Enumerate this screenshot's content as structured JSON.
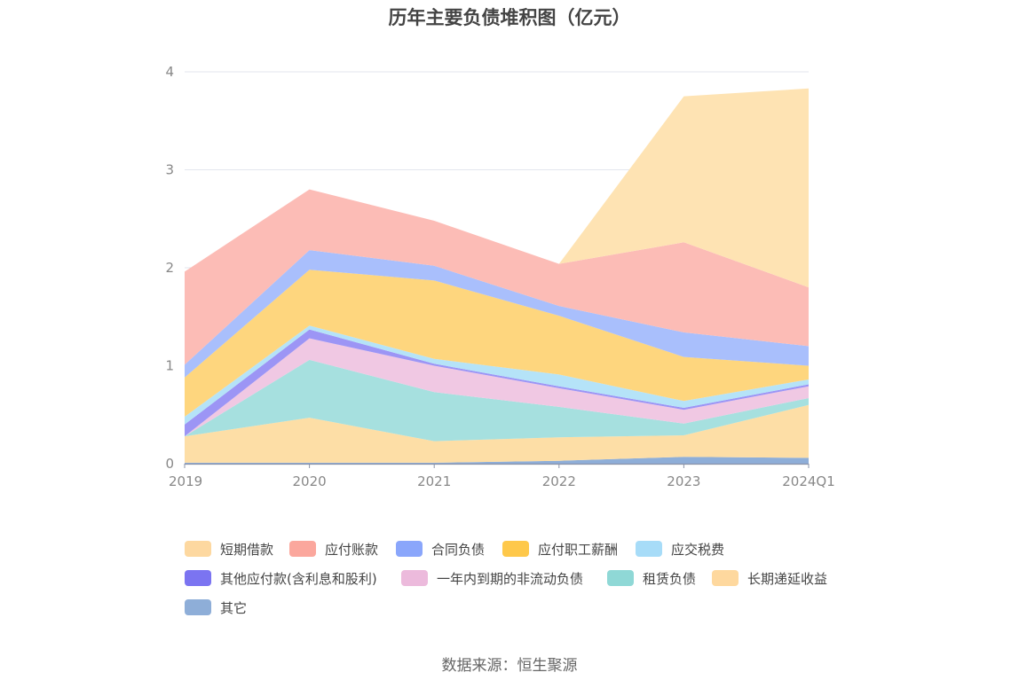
{
  "chart_data": {
    "type": "area",
    "stacked": true,
    "title": "历年主要负债堆积图（亿元）",
    "categories": [
      "2019",
      "2020",
      "2021",
      "2022",
      "2023",
      "2024Q1"
    ],
    "ylim": [
      0,
      4
    ],
    "yticks": [
      "0",
      "1",
      "2",
      "3",
      "4"
    ],
    "grid": true,
    "legend_position": "bottom",
    "series": [
      {
        "name": "其它",
        "color": "#8eaed8",
        "values": [
          0.01,
          0.01,
          0.01,
          0.03,
          0.07,
          0.06
        ]
      },
      {
        "name": "短期借款",
        "color": "#fddea6",
        "values": [
          0.27,
          0.46,
          0.22,
          0.24,
          0.22,
          0.54
        ]
      },
      {
        "name": "租赁负债",
        "color": "#a6e0df",
        "values": [
          0.0,
          0.59,
          0.5,
          0.31,
          0.12,
          0.07
        ]
      },
      {
        "name": "一年内到期的非流动负债",
        "color": "#f0c8e3",
        "values": [
          0.0,
          0.22,
          0.27,
          0.19,
          0.14,
          0.12
        ]
      },
      {
        "name": "其他应付款(含利息和股利)",
        "color": "#9c95f5",
        "values": [
          0.12,
          0.09,
          0.02,
          0.02,
          0.02,
          0.02
        ]
      },
      {
        "name": "应交税费",
        "color": "#b5e3f8",
        "values": [
          0.08,
          0.04,
          0.05,
          0.12,
          0.07,
          0.05
        ]
      },
      {
        "name": "应付职工薪酬",
        "color": "#fed67e",
        "values": [
          0.4,
          0.57,
          0.8,
          0.6,
          0.45,
          0.14
        ]
      },
      {
        "name": "合同负债",
        "color": "#a9bffc",
        "values": [
          0.13,
          0.2,
          0.15,
          0.1,
          0.25,
          0.2
        ]
      },
      {
        "name": "应付账款",
        "color": "#fcbcb6",
        "values": [
          0.95,
          0.62,
          0.46,
          0.43,
          0.92,
          0.6
        ]
      },
      {
        "name": "长期递延收益",
        "color": "#fee3b3",
        "values": [
          0.0,
          0.0,
          0.0,
          0.0,
          1.49,
          2.03
        ]
      }
    ]
  },
  "legend": [
    {
      "label": "短期借款",
      "color": "#fdd8a0"
    },
    {
      "label": "应付账款",
      "color": "#fba79d"
    },
    {
      "label": "合同负债",
      "color": "#8aa6fb"
    },
    {
      "label": "应付职工薪酬",
      "color": "#fec84a"
    },
    {
      "label": "应交税费",
      "color": "#a7dcf8"
    },
    {
      "label": "其他应付款(含利息和股利)",
      "color": "#7b74f1"
    },
    {
      "label": "一年内到期的非流动负债",
      "color": "#ecbadc"
    },
    {
      "label": "租赁负债",
      "color": "#8fd8d6"
    },
    {
      "label": "长期递延收益",
      "color": "#fed89e"
    },
    {
      "label": "其它",
      "color": "#8eaed8"
    }
  ],
  "source_note": "数据来源：恒生聚源"
}
